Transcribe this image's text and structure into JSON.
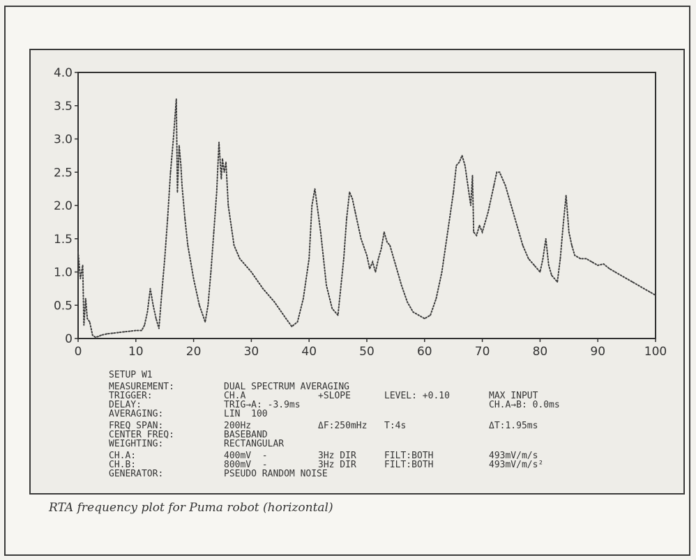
{
  "chart_data": {
    "type": "line",
    "title": "",
    "xlabel": "",
    "ylabel": "",
    "xlim": [
      0,
      100
    ],
    "ylim": [
      0,
      4.0
    ],
    "x_ticks": [
      "0",
      "10",
      "20",
      "30",
      "40",
      "50",
      "60",
      "70",
      "80",
      "90",
      "100"
    ],
    "y_ticks": [
      "0",
      "0.5",
      "1.0",
      "1.5",
      "2.0",
      "2.5",
      "3.0",
      "3.5",
      "4.0"
    ],
    "grid": false,
    "line_style": "dotted",
    "series": [
      {
        "x": [
          0,
          0.4,
          0.8,
          1.0,
          1.3,
          1.6,
          2,
          2.5,
          3,
          3.5,
          4,
          5,
          6,
          7,
          8,
          9,
          10,
          11,
          11.5,
          12,
          12.5,
          13,
          13.5,
          14,
          14.5,
          15,
          15.5,
          16,
          16.5,
          17,
          17.2,
          17.5,
          17.8,
          18,
          18.5,
          19,
          20,
          21,
          22,
          22.5,
          23,
          23.5,
          24,
          24.4,
          24.8,
          25,
          25.3,
          25.6,
          26,
          27,
          28,
          30,
          32,
          34,
          36,
          37,
          38,
          39,
          40,
          40.5,
          41,
          42,
          43,
          44,
          45,
          46,
          46.5,
          47,
          47.5,
          48,
          49,
          50,
          50.5,
          51,
          51.5,
          52,
          52.5,
          53,
          53.5,
          54,
          55,
          56,
          57,
          58,
          59,
          60,
          61,
          62,
          63,
          64,
          65,
          65.5,
          66,
          66.5,
          67,
          67.5,
          68,
          68.3,
          68.5,
          69,
          69.5,
          70,
          71,
          72,
          72.5,
          73,
          74,
          75,
          76,
          77,
          78,
          79,
          80,
          80.5,
          81,
          81.5,
          82,
          83,
          83.5,
          84,
          84.5,
          85,
          85.5,
          86,
          87,
          88,
          89,
          90,
          91,
          92,
          93,
          94,
          95,
          96,
          97,
          98,
          99,
          100
        ],
        "y": [
          1.3,
          0.9,
          1.1,
          0.2,
          0.6,
          0.3,
          0.25,
          0.05,
          0.02,
          0.03,
          0.05,
          0.07,
          0.08,
          0.09,
          0.1,
          0.11,
          0.12,
          0.12,
          0.2,
          0.4,
          0.75,
          0.5,
          0.3,
          0.15,
          0.7,
          1.2,
          1.8,
          2.5,
          3.0,
          3.6,
          2.2,
          2.9,
          2.6,
          2.3,
          1.8,
          1.4,
          0.9,
          0.5,
          0.25,
          0.5,
          1.0,
          1.6,
          2.2,
          2.95,
          2.4,
          2.7,
          2.5,
          2.65,
          2.0,
          1.4,
          1.2,
          1.0,
          0.75,
          0.55,
          0.3,
          0.18,
          0.25,
          0.6,
          1.2,
          2.0,
          2.25,
          1.6,
          0.8,
          0.45,
          0.35,
          1.2,
          1.8,
          2.2,
          2.1,
          1.9,
          1.5,
          1.25,
          1.05,
          1.15,
          1.0,
          1.2,
          1.35,
          1.6,
          1.45,
          1.4,
          1.1,
          0.8,
          0.55,
          0.4,
          0.35,
          0.3,
          0.35,
          0.6,
          1.0,
          1.6,
          2.2,
          2.6,
          2.65,
          2.75,
          2.6,
          2.3,
          2.0,
          2.45,
          1.6,
          1.55,
          1.7,
          1.6,
          1.9,
          2.3,
          2.5,
          2.5,
          2.3,
          2.0,
          1.7,
          1.4,
          1.2,
          1.1,
          1.0,
          1.2,
          1.5,
          1.1,
          0.95,
          0.85,
          1.2,
          1.7,
          2.15,
          1.6,
          1.4,
          1.25,
          1.2,
          1.2,
          1.15,
          1.1,
          1.12,
          1.05,
          1.0,
          0.95,
          0.9,
          0.85,
          0.8,
          0.75,
          0.7,
          0.65
        ]
      }
    ]
  },
  "setup": {
    "title": "SETUP W1",
    "rows": [
      {
        "label": "MEASUREMENT:",
        "c1": "DUAL SPECTRUM AVERAGING",
        "c2": "",
        "c3": "",
        "c4": "",
        "c5": ""
      },
      {
        "label": "TRIGGER:",
        "c1": "CH.A",
        "c2": "+SLOPE",
        "c3": "LEVEL: +0.10",
        "c4": "MAX INPUT",
        "c5": ""
      },
      {
        "label": "DELAY:",
        "c1": "TRIG→A: -3.9ms",
        "c2": "",
        "c3": "",
        "c4": "CH.A→B: 0.0ms",
        "c5": ""
      },
      {
        "label": "AVERAGING:",
        "c1": "LIN  100",
        "c2": "",
        "c3": "",
        "c4": "",
        "c5": ""
      }
    ],
    "rows2": [
      {
        "label": "FREQ SPAN:",
        "c1": "200Hz",
        "c2": "ΔF:250mHz",
        "c3": "T:4s",
        "c4": "ΔT:1.95ms",
        "c5": ""
      },
      {
        "label": "CENTER FREQ:",
        "c1": "BASEBAND",
        "c2": "",
        "c3": "",
        "c4": "",
        "c5": ""
      },
      {
        "label": "WEIGHTING:",
        "c1": "RECTANGULAR",
        "c2": "",
        "c3": "",
        "c4": "",
        "c5": ""
      }
    ],
    "rows3": [
      {
        "label": "CH.A:",
        "c1": "400mV  -",
        "c2": "3Hz DIR",
        "c3": "FILT:BOTH",
        "c4": "493mV/m/s",
        "c5": ""
      },
      {
        "label": "CH.B:",
        "c1": "800mV  -",
        "c2": "3Hz DIR",
        "c3": "FILT:BOTH",
        "c4": "493mV/m/s²",
        "c5": ""
      },
      {
        "label": "GENERATOR:",
        "c1": "PSEUDO RANDOM NOISE",
        "c2": "",
        "c3": "",
        "c4": "",
        "c5": ""
      }
    ]
  },
  "caption": "RTA frequency plot for Puma robot (horizontal)"
}
